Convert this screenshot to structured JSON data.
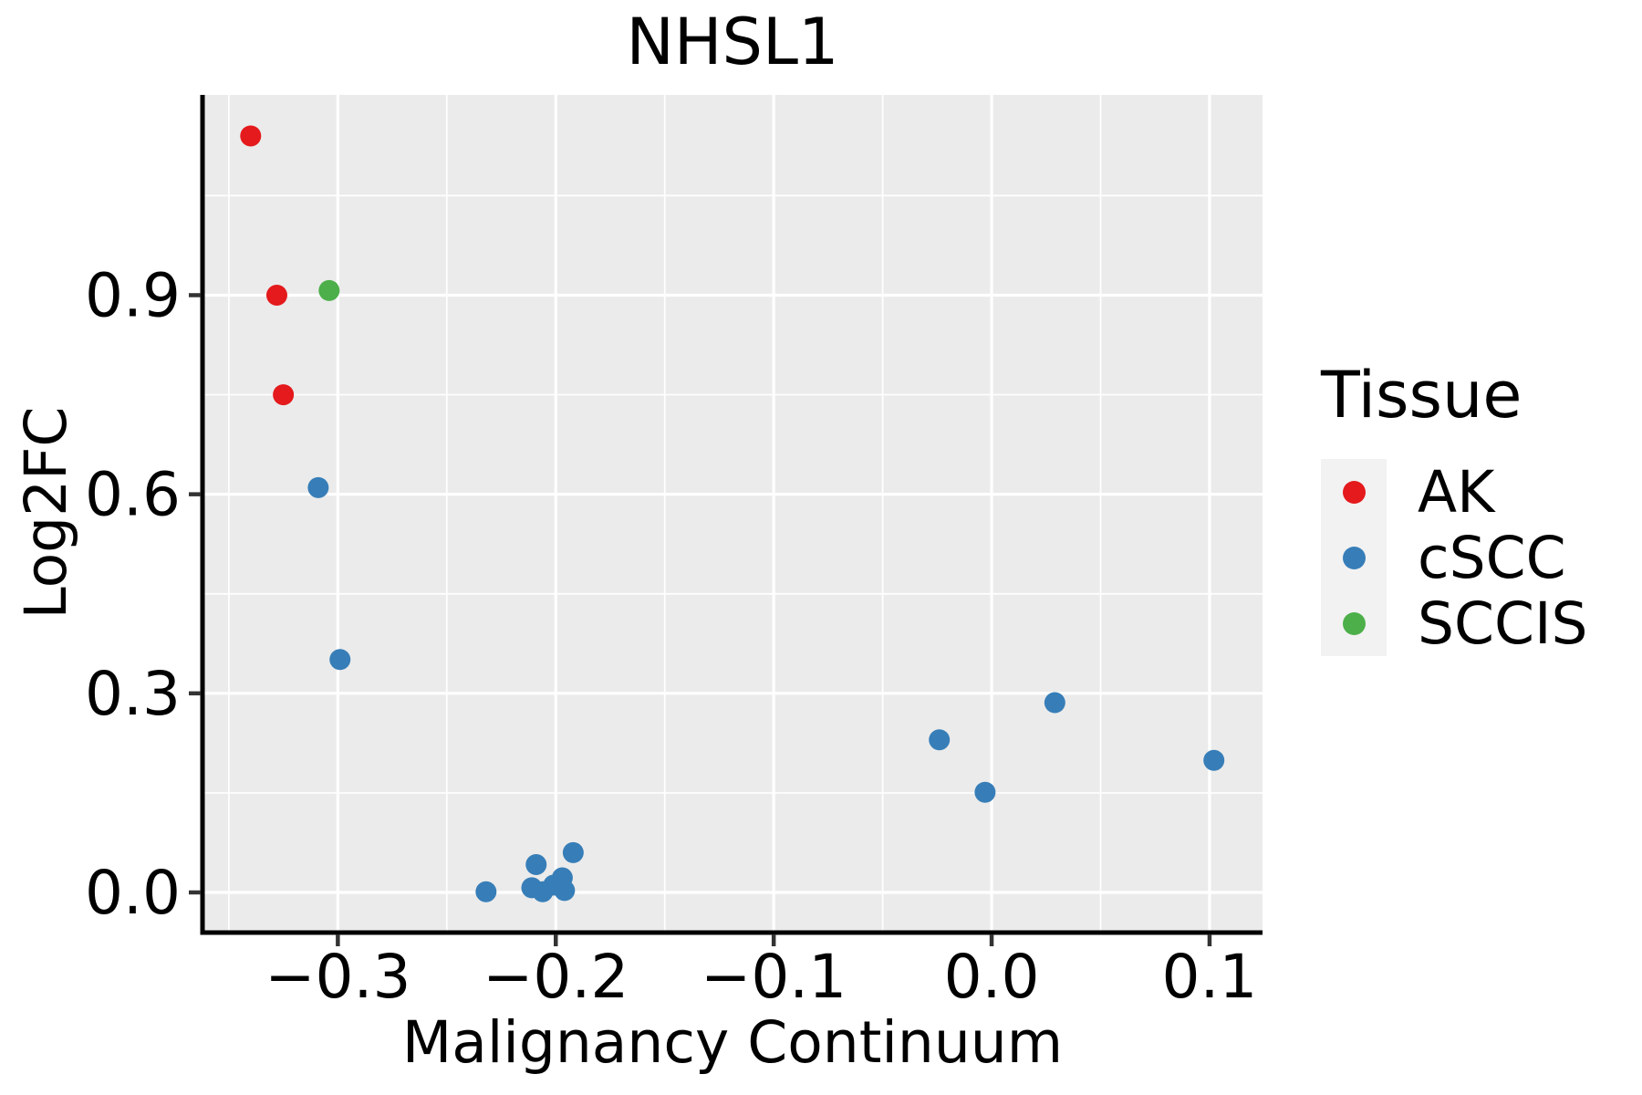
{
  "title": "NHSL1",
  "axes": {
    "x": {
      "label": "Malignancy Continuum",
      "ticks": [
        {
          "label": "−0.3",
          "value": -0.3
        },
        {
          "label": "−0.2",
          "value": -0.2
        },
        {
          "label": "−0.1",
          "value": -0.1
        },
        {
          "label": "0.0",
          "value": 0.0
        },
        {
          "label": "0.1",
          "value": 0.1
        }
      ],
      "minor_ticks": [
        -0.35,
        -0.25,
        -0.15,
        -0.05,
        0.05
      ]
    },
    "y": {
      "label": "Log2FC",
      "ticks": [
        {
          "label": "0.0",
          "value": 0.0
        },
        {
          "label": "0.3",
          "value": 0.3
        },
        {
          "label": "0.6",
          "value": 0.6
        },
        {
          "label": "0.9",
          "value": 0.9
        }
      ],
      "minor_ticks": [
        0.15,
        0.45,
        0.75,
        1.05
      ]
    }
  },
  "legend": {
    "title": "Tissue",
    "items": [
      {
        "label": "AK",
        "color": "#E41A1C"
      },
      {
        "label": "cSCC",
        "color": "#377EB8"
      },
      {
        "label": "SCCIS",
        "color": "#4DAF4A"
      }
    ]
  },
  "chart_data": {
    "type": "scatter",
    "title": "NHSL1",
    "xlabel": "Malignancy Continuum",
    "ylabel": "Log2FC",
    "xlim": [
      -0.3621,
      0.1243
    ],
    "ylim": [
      -0.0605,
      1.2018
    ],
    "x_ticks": [
      -0.3,
      -0.2,
      -0.1,
      0.0,
      0.1
    ],
    "y_ticks": [
      0.0,
      0.3,
      0.6,
      0.9
    ],
    "grid": "on",
    "legend_position": "right",
    "series": [
      {
        "name": "AK",
        "color": "#E41A1C",
        "points": [
          [
            -0.34,
            1.14
          ],
          [
            -0.328,
            0.9
          ],
          [
            -0.325,
            0.75
          ]
        ]
      },
      {
        "name": "cSCC",
        "color": "#377EB8",
        "points": [
          [
            -0.309,
            0.61
          ],
          [
            -0.299,
            0.351
          ],
          [
            -0.232,
            0.001
          ],
          [
            -0.211,
            0.007
          ],
          [
            -0.209,
            0.042
          ],
          [
            -0.206,
            0.001
          ],
          [
            -0.201,
            0.011
          ],
          [
            -0.197,
            0.022
          ],
          [
            -0.196,
            0.003
          ],
          [
            -0.192,
            0.06
          ],
          [
            -0.024,
            0.23
          ],
          [
            -0.003,
            0.151
          ],
          [
            0.029,
            0.286
          ],
          [
            0.102,
            0.199
          ]
        ]
      },
      {
        "name": "SCCIS",
        "color": "#4DAF4A",
        "points": [
          [
            -0.304,
            0.907
          ]
        ]
      }
    ]
  },
  "style": {
    "panel_bg": "#EBEBEB",
    "gridline_color": "#FFFFFF",
    "axis_line_color": "#000000",
    "tick_color": "#333333",
    "text_color": "#000000",
    "legend_key_bg": "#F2F2F2",
    "point_radius": 11.5
  }
}
